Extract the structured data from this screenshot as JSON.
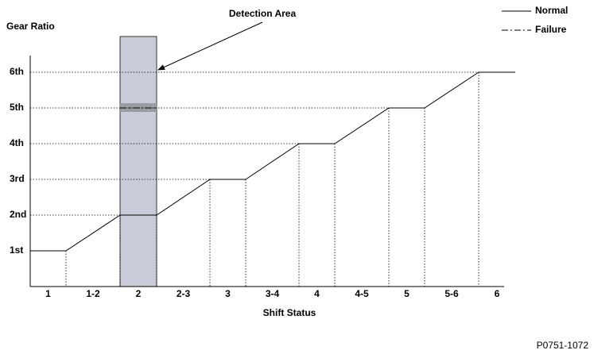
{
  "annotation": "Detection Area",
  "y_axis": {
    "label": "Gear Ratio",
    "ticks": [
      "1st",
      "2nd",
      "3rd",
      "4th",
      "5th",
      "6th"
    ]
  },
  "x_axis": {
    "label": "Shift Status",
    "ticks": [
      "1",
      "1-2",
      "2",
      "2-3",
      "3",
      "3-4",
      "4",
      "4-5",
      "5",
      "5-6",
      "6"
    ]
  },
  "legend": [
    {
      "name": "Normal"
    },
    {
      "name": "Failure"
    }
  ],
  "figure_id": "P0751-1072"
}
